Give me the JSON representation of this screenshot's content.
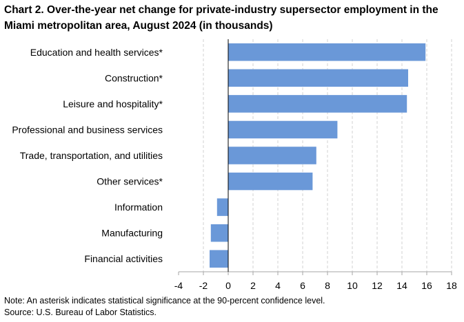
{
  "title": "Chart 2. Over-the-year net change for private-industry supersector employment in the Miami metropolitan area, August 2024 (in thousands)",
  "notes": {
    "note": "Note: An asterisk indicates statistical significance at the 90-percent confidence level.",
    "source": "Source: U.S. Bureau of Labor Statistics."
  },
  "colors": {
    "bar": "#6a98d8",
    "grid": "#d0d0d0",
    "axis": "#000000"
  },
  "chart_data": {
    "type": "bar",
    "orientation": "horizontal",
    "title": "Chart 2. Over-the-year net change for private-industry supersector employment in the Miami metropolitan area, August 2024 (in thousands)",
    "categories": [
      "Education and health services*",
      "Construction*",
      "Leisure and hospitality*",
      "Professional and business services",
      "Trade, transportation, and utilities",
      "Other services*",
      "Information",
      "Manufacturing",
      "Financial activities"
    ],
    "values": [
      15.9,
      14.5,
      14.4,
      8.8,
      7.1,
      6.8,
      -0.9,
      -1.4,
      -1.5
    ],
    "xlim": [
      -4,
      18
    ],
    "xticks": [
      -4,
      -2,
      0,
      2,
      4,
      6,
      8,
      10,
      12,
      14,
      16,
      18
    ],
    "grid": "vertical dashed",
    "legend": "none"
  }
}
